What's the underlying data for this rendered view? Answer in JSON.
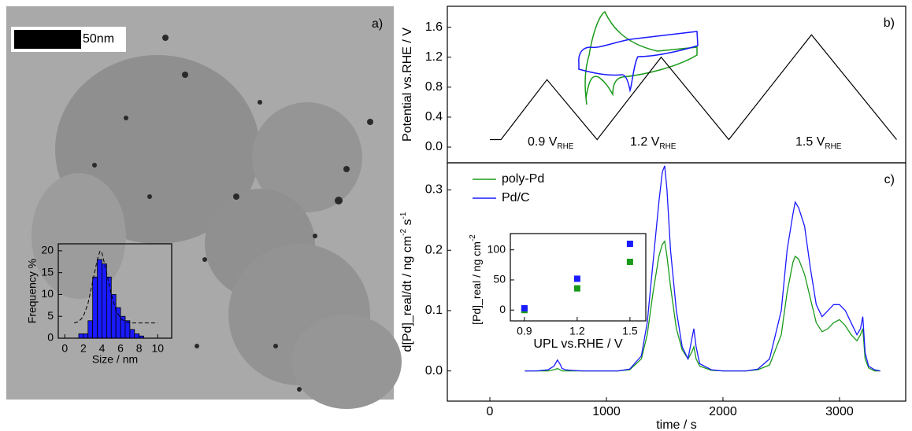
{
  "image": {
    "label": "a)",
    "scale_bar": "50nm"
  },
  "chart_data": [
    {
      "type": "histogram",
      "xlabel": "Size / nm",
      "ylabel": "Frequency %",
      "color": "#1a1aff",
      "bins": [
        1.5,
        2,
        2.5,
        3,
        3.5,
        4,
        4.5,
        5,
        5.5,
        6,
        6.5,
        7,
        7.5,
        8,
        8.5
      ],
      "counts": [
        1,
        1,
        4,
        14,
        18,
        17,
        14,
        10,
        7,
        5,
        4,
        2,
        1,
        0.5
      ],
      "series": [
        {
          "color": "#000000",
          "style": "dashed",
          "x": [
            1,
            1.5,
            2,
            2.5,
            3,
            3.5,
            3.8,
            4,
            4.5,
            5,
            5.5,
            6,
            6.5,
            7,
            8,
            9,
            10
          ],
          "values": [
            3.5,
            3.8,
            5,
            8,
            13,
            18,
            20,
            19.5,
            15,
            10,
            6.5,
            4.5,
            3.8,
            3.5,
            3.5,
            3.5,
            3.5
          ]
        }
      ],
      "xlim": [
        -0.7,
        11.5
      ],
      "ylim": [
        0,
        21.6
      ],
      "xticks": [
        0,
        2,
        4,
        6,
        8,
        10
      ],
      "yticks": [
        0,
        5,
        10,
        15,
        20
      ]
    },
    {
      "type": "line",
      "label": "b)",
      "ylabel": "Potential vs.RHE / V",
      "x": [
        0,
        95,
        490,
        920,
        1470,
        2050,
        2760,
        3490
      ],
      "series": [
        {
          "color": "#000000",
          "values": [
            0.1,
            0.1,
            0.9,
            0.1,
            1.2,
            0.1,
            1.5,
            0.1
          ]
        }
      ],
      "annotations": [
        {
          "text": "0.9 V",
          "sub": "RHE"
        },
        {
          "text": "1.2 V",
          "sub": "RHE"
        },
        {
          "text": "1.5 V",
          "sub": "RHE"
        }
      ],
      "xlim": [
        -365,
        3568
      ],
      "ylim": [
        -0.21,
        1.88
      ],
      "yticks": [
        {
          "value": 0,
          "label": "0.0"
        },
        0.4,
        0.8,
        1.2,
        1.6
      ]
    },
    {
      "type": "line",
      "label": "c)",
      "xlabel": "time / s",
      "ylabel": [
        "d[Pd]_real/dt / ng cm",
        "-2",
        " s",
        "-1"
      ],
      "x": [
        300,
        400,
        500,
        550,
        580,
        600,
        620,
        650,
        700,
        800,
        900,
        1000,
        1100,
        1200,
        1300,
        1350,
        1400,
        1450,
        1480,
        1500,
        1520,
        1550,
        1600,
        1650,
        1700,
        1730,
        1750,
        1770,
        1800,
        1900,
        2000,
        2100,
        2200,
        2300,
        2400,
        2500,
        2550,
        2600,
        2620,
        2650,
        2700,
        2750,
        2800,
        2850,
        2900,
        2950,
        3000,
        3050,
        3100,
        3150,
        3180,
        3200,
        3220,
        3250,
        3300,
        3350
      ],
      "series": [
        {
          "name": "poly-Pd",
          "color": "#1a9a1a",
          "values": [
            0,
            0,
            0,
            0.002,
            0.004,
            0.002,
            0,
            0,
            0,
            0,
            0,
            0,
            0,
            0.002,
            0.02,
            0.06,
            0.13,
            0.19,
            0.21,
            0.215,
            0.19,
            0.14,
            0.07,
            0.035,
            0.02,
            0.03,
            0.04,
            0.02,
            0.008,
            0.001,
            0,
            0,
            0,
            0.002,
            0.01,
            0.06,
            0.13,
            0.18,
            0.19,
            0.185,
            0.16,
            0.12,
            0.08,
            0.065,
            0.07,
            0.08,
            0.085,
            0.075,
            0.06,
            0.05,
            0.06,
            0.07,
            0.02,
            0.005,
            0,
            0
          ]
        },
        {
          "name": "Pd/C",
          "color": "#1a1aff",
          "values": [
            0,
            0,
            0.002,
            0.008,
            0.018,
            0.012,
            0.004,
            0.002,
            0.001,
            0,
            0,
            0,
            0,
            0.003,
            0.025,
            0.08,
            0.18,
            0.28,
            0.33,
            0.34,
            0.3,
            0.2,
            0.1,
            0.04,
            0.02,
            0.05,
            0.07,
            0.04,
            0.012,
            0.002,
            0,
            0,
            0,
            0.003,
            0.02,
            0.1,
            0.2,
            0.26,
            0.28,
            0.27,
            0.24,
            0.17,
            0.11,
            0.09,
            0.1,
            0.11,
            0.11,
            0.1,
            0.08,
            0.06,
            0.07,
            0.09,
            0.03,
            0.008,
            0.002,
            0
          ]
        }
      ],
      "xlim": [
        -365,
        3568
      ],
      "ylim": [
        -0.05,
        0.345
      ],
      "xticks": [
        0,
        1000,
        2000,
        3000
      ],
      "yticks": [
        {
          "value": 0,
          "label": "0.0"
        },
        0.1,
        0.2,
        0.3
      ]
    },
    {
      "type": "scatter",
      "xlabel": "UPL vs.RHE / V",
      "ylabel": [
        "[Pd]_real / ng cm",
        "-2"
      ],
      "x": [
        0.9,
        1.2,
        1.5
      ],
      "series": [
        {
          "color": "#1a9a1a",
          "values": [
            0,
            36,
            80
          ]
        },
        {
          "color": "#1a1aff",
          "values": [
            3,
            52,
            110
          ]
        }
      ],
      "xlim": [
        0.82,
        1.59
      ],
      "ylim": [
        -18,
        127
      ],
      "xticks": [
        0.9,
        1.2,
        1.5
      ],
      "yticks": [
        0,
        50,
        100
      ]
    }
  ]
}
